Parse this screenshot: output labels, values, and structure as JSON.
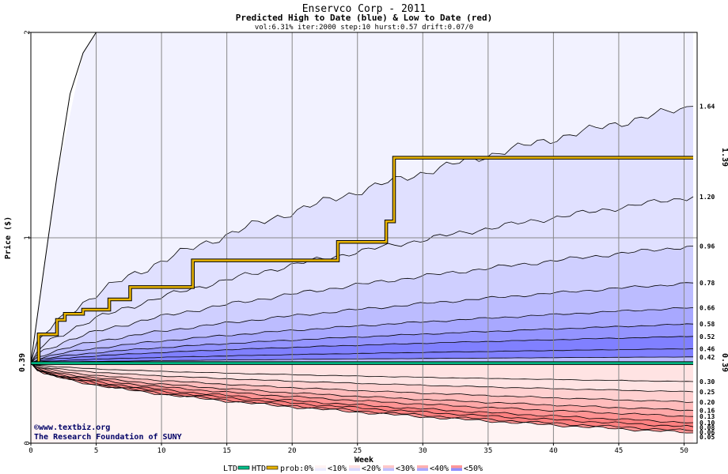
{
  "title": "Enservco Corp - 2011",
  "subtitle": "Predicted High to Date (blue) &  Low to Date (red)",
  "params": "vol:6.31% iter:2000 step:10 hurst:0.57 drift:0.07/0",
  "credit": {
    "line1": "©www.textbiz.org",
    "line2": "The Research Foundation of SUNY"
  },
  "legend": {
    "ltd": "LTD",
    "htd": "HTD",
    "prob": "prob:0%",
    "bins": [
      "<10%",
      "<20%",
      "<30%",
      "<40%",
      "<50%"
    ]
  },
  "colors": {
    "blue_bands": [
      "#f2f2ff",
      "#e0e0ff",
      "#cfcfff",
      "#bcbcff",
      "#a8a8ff",
      "#9494ff",
      "#8080ff"
    ],
    "red_bands": [
      "#fff3f3",
      "#ffe3e3",
      "#ffd0d0",
      "#ffbcbc",
      "#ffa8a8",
      "#ff9494",
      "#ff8080"
    ],
    "htd_line": "#e8b400",
    "ltd_line": "#00c08a",
    "grid": "#888888",
    "right_label_orange": "#aa7700",
    "right_label_green": "#008855",
    "left_label_green": "#006600"
  },
  "chart_data": {
    "type": "area",
    "xlabel": "Week",
    "ylabel": "Price ($)",
    "xlim": [
      0,
      51
    ],
    "ylim": [
      0,
      2
    ],
    "x_ticks": [
      0,
      5,
      10,
      15,
      20,
      25,
      30,
      35,
      40,
      45,
      50
    ],
    "y_ticks": [
      0,
      1,
      2
    ],
    "start_price": 0.39,
    "current_price_label": "0.39",
    "htd_right_label": "1.39",
    "ltd_right_label": "0.39",
    "high_quantiles_end": [
      "1.64",
      "1.20",
      "0.96",
      "0.78",
      "0.66",
      "0.58",
      "0.52",
      "0.46",
      "0.42"
    ],
    "high_quantiles_end_values": [
      1.64,
      1.2,
      0.96,
      0.78,
      0.66,
      0.58,
      0.52,
      0.46,
      0.42
    ],
    "low_quantiles_end": [
      "0.30",
      "0.25",
      "0.20",
      "0.16",
      "0.13",
      "0.10",
      "0.08",
      "0.06",
      "0.05"
    ],
    "low_quantiles_end_values": [
      0.3,
      0.25,
      0.2,
      0.16,
      0.13,
      0.1,
      0.08,
      0.06,
      0.05
    ],
    "max_curve": [
      [
        0,
        0.39
      ],
      [
        2,
        1.3
      ],
      [
        4,
        1.9
      ],
      [
        5,
        2.0
      ]
    ],
    "htd_series": [
      [
        0,
        0.39
      ],
      [
        0.6,
        0.39
      ],
      [
        0.6,
        0.53
      ],
      [
        2,
        0.53
      ],
      [
        2,
        0.6
      ],
      [
        2.6,
        0.6
      ],
      [
        2.6,
        0.63
      ],
      [
        4,
        0.63
      ],
      [
        4,
        0.65
      ],
      [
        6,
        0.65
      ],
      [
        6,
        0.7
      ],
      [
        7.6,
        0.7
      ],
      [
        7.6,
        0.76
      ],
      [
        12.4,
        0.76
      ],
      [
        12.4,
        0.89
      ],
      [
        23.5,
        0.89
      ],
      [
        23.5,
        0.98
      ],
      [
        27.2,
        0.98
      ],
      [
        27.2,
        1.08
      ],
      [
        27.8,
        1.08
      ],
      [
        27.8,
        1.39
      ],
      [
        50.7,
        1.39
      ]
    ],
    "ltd_series": [
      [
        0,
        0.39
      ],
      [
        50.7,
        0.39
      ]
    ]
  }
}
